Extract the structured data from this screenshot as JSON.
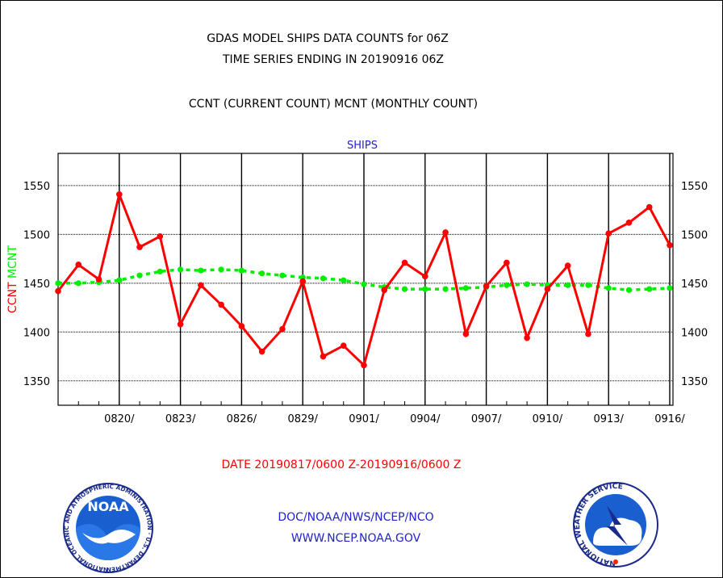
{
  "chart_data": {
    "type": "line",
    "title_lines": [
      "GDAS MODEL SHIPS DATA COUNTS for 06Z",
      "TIME SERIES ENDING IN 20190916 06Z"
    ],
    "subtitle": "CCNT (CURRENT COUNT) MCNT (MONTHLY COUNT)",
    "panel_label": "SHIPS",
    "ylabel_parts": [
      "CCNT",
      "MCNT"
    ],
    "xlabel": "DATE 20190817/0600 Z-20190916/0600 Z",
    "x_ticks": [
      "0820/",
      "0823/",
      "0826/",
      "0829/",
      "0901/",
      "0904/",
      "0907/",
      "0910/",
      "0913/",
      "0916/"
    ],
    "y_ticks": [
      1350,
      1400,
      1450,
      1500,
      1550
    ],
    "ylim": [
      1325,
      1583
    ],
    "x_range_days": [
      0,
      30
    ],
    "grid": true,
    "series": [
      {
        "name": "CCNT",
        "color": "#ff0000",
        "style": "solid",
        "values": [
          1442,
          1469,
          1454,
          1541,
          1487,
          1498,
          1408,
          1448,
          1428,
          1406,
          1380,
          1403,
          1452,
          1375,
          1386,
          1366,
          1443,
          1471,
          1457,
          1502,
          1398,
          1447,
          1471,
          1394,
          1444,
          1468,
          1398,
          1501,
          1512,
          1528,
          1489
        ]
      },
      {
        "name": "MCNT",
        "color": "#00ee00",
        "style": "dashed",
        "values": [
          1450,
          1450,
          1451,
          1453,
          1458,
          1462,
          1464,
          1463,
          1464,
          1463,
          1460,
          1458,
          1456,
          1455,
          1453,
          1449,
          1446,
          1444,
          1444,
          1444,
          1445,
          1446,
          1448,
          1449,
          1448,
          1448,
          1448,
          1445,
          1443,
          1444,
          1445
        ]
      }
    ]
  },
  "footer": {
    "agency": "DOC/NOAA/NWS/NCEP/NCO",
    "website": "WWW.NCEP.NOAA.GOV",
    "noaa_logo_text": "NOAA",
    "noaa_ring_text": "NATIONAL OCEANIC AND ATMOSPHERIC ADMINISTRATION · U.S. DEPARTMENT OF COMMERCE ·",
    "nws_ring_text": "NATIONAL WEATHER SERVICE"
  }
}
